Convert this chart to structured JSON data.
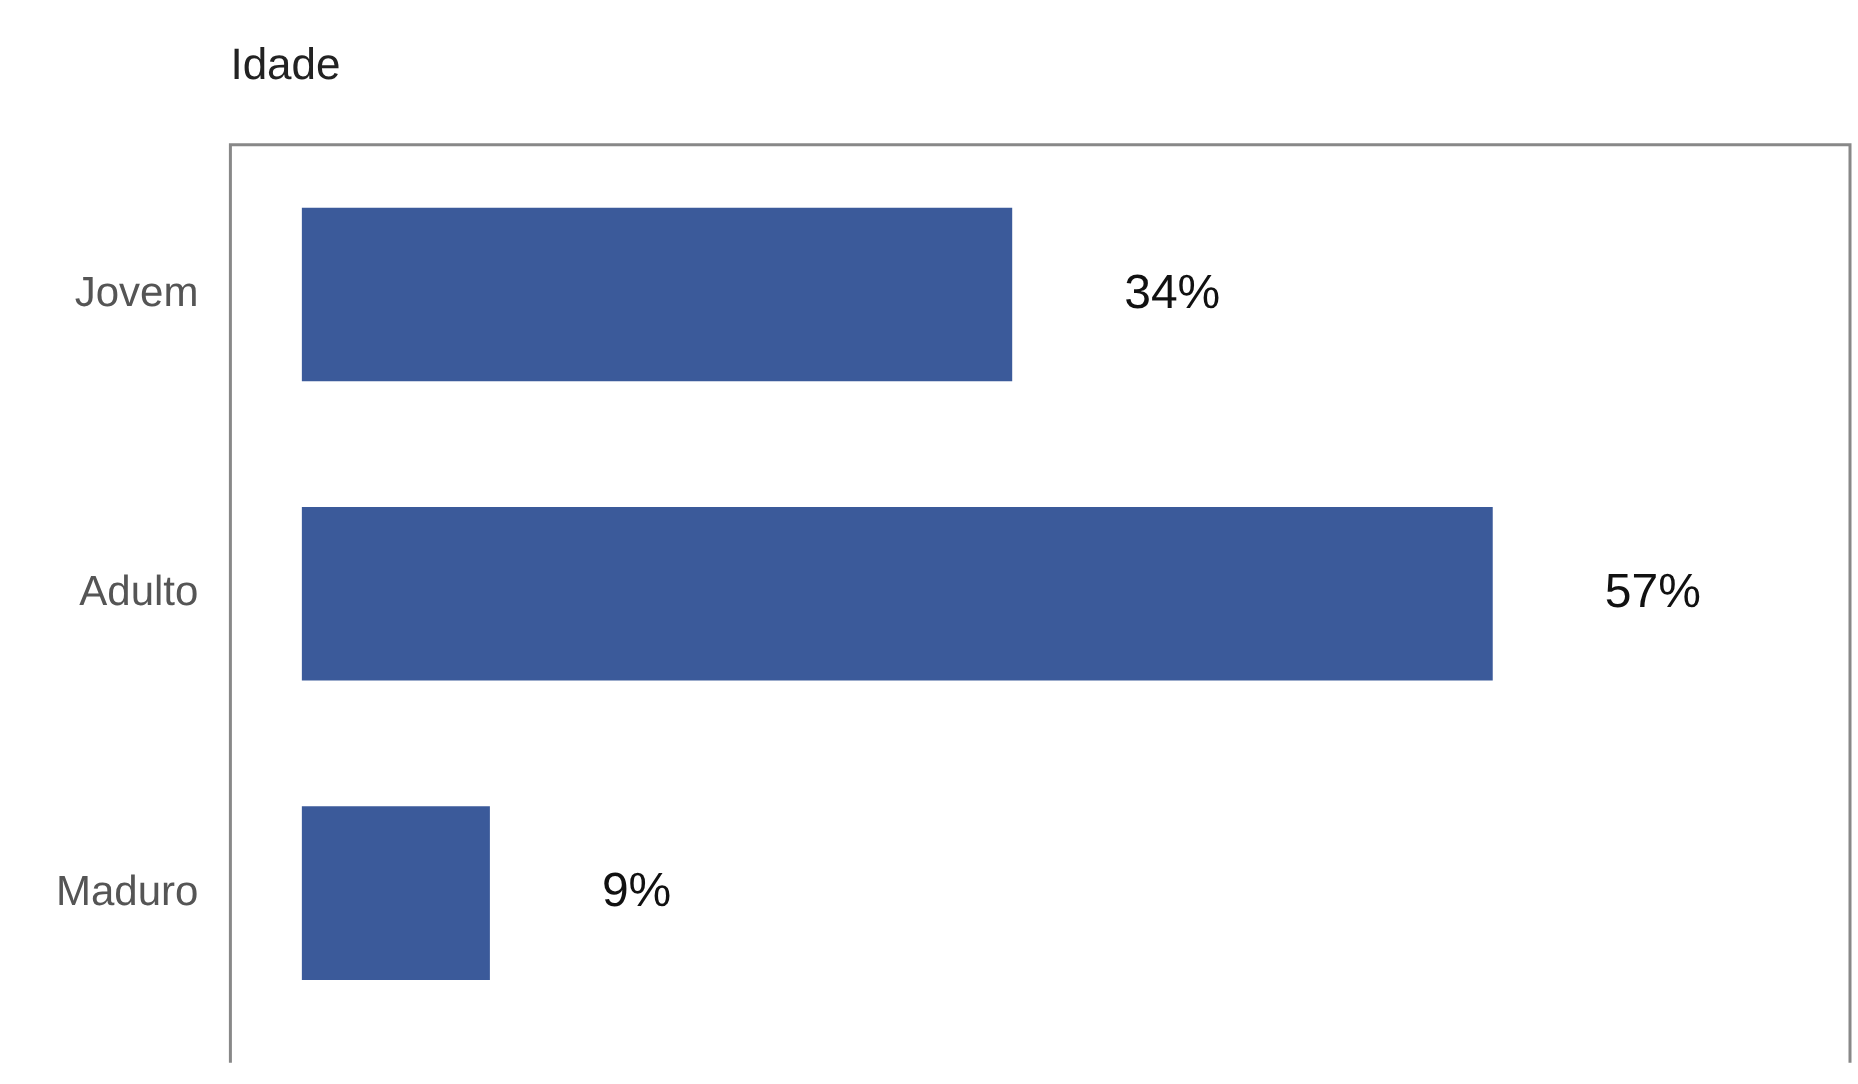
{
  "chart_data": {
    "type": "bar",
    "orientation": "horizontal",
    "title": "Idade",
    "categories": [
      "Jovem",
      "Adulto",
      "Maduro"
    ],
    "values": [
      34,
      57,
      9
    ],
    "color": "#3b5a9a",
    "value_labels": [
      "34%",
      "57%",
      "9%"
    ]
  }
}
